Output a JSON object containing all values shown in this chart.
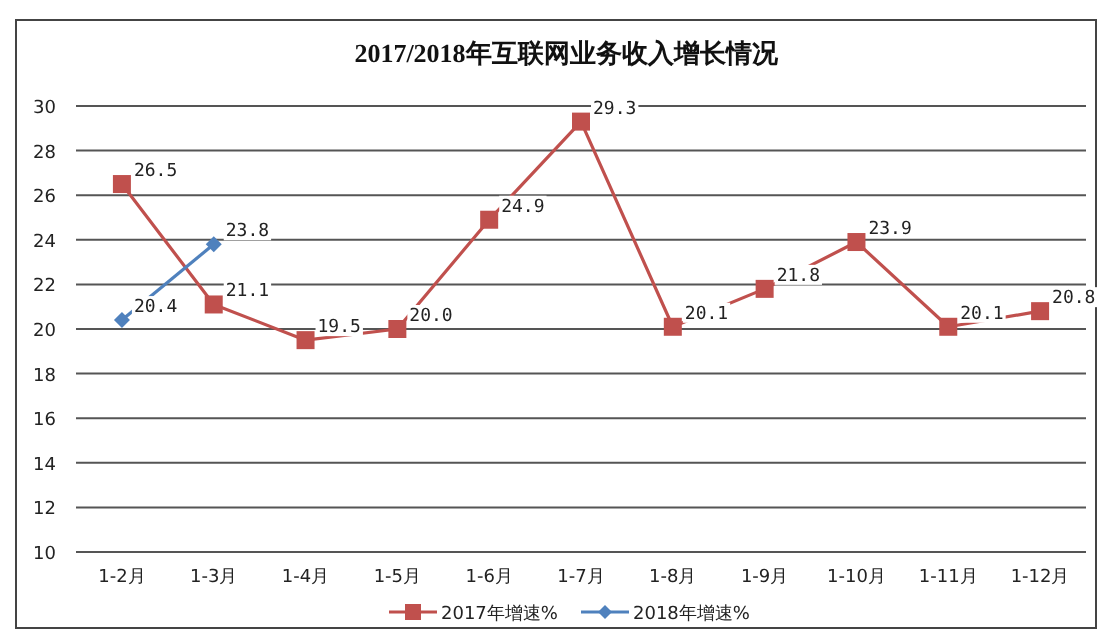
{
  "chart_data": {
    "type": "line",
    "title": "2017/2018年互联网业务收入增长情况",
    "categories": [
      "1-2月",
      "1-3月",
      "1-4月",
      "1-5月",
      "1-6月",
      "1-7月",
      "1-8月",
      "1-9月",
      "1-10月",
      "1-11月",
      "1-12月"
    ],
    "series": [
      {
        "name": "2017年增速%",
        "color": "#c0504d",
        "marker": "square",
        "values": [
          26.5,
          21.1,
          19.5,
          20.0,
          24.9,
          29.3,
          20.1,
          21.8,
          23.9,
          20.1,
          20.8
        ],
        "value_labels": [
          "26.5",
          "21.1",
          "19.5",
          "20.0",
          "24.9",
          "29.3",
          "20.1",
          "21.8",
          "23.9",
          "20.1",
          "20.8"
        ]
      },
      {
        "name": "2018年增速%",
        "color": "#4f81bd",
        "marker": "diamond",
        "values": [
          20.4,
          23.8,
          null,
          null,
          null,
          null,
          null,
          null,
          null,
          null,
          null
        ],
        "value_labels": [
          "20.4",
          "23.8",
          null,
          null,
          null,
          null,
          null,
          null,
          null,
          null,
          null
        ]
      }
    ],
    "ylim": [
      10,
      30
    ],
    "yticks": [
      10,
      12,
      14,
      16,
      18,
      20,
      22,
      24,
      26,
      28,
      30
    ],
    "grid": "y",
    "legend": "bottom"
  }
}
